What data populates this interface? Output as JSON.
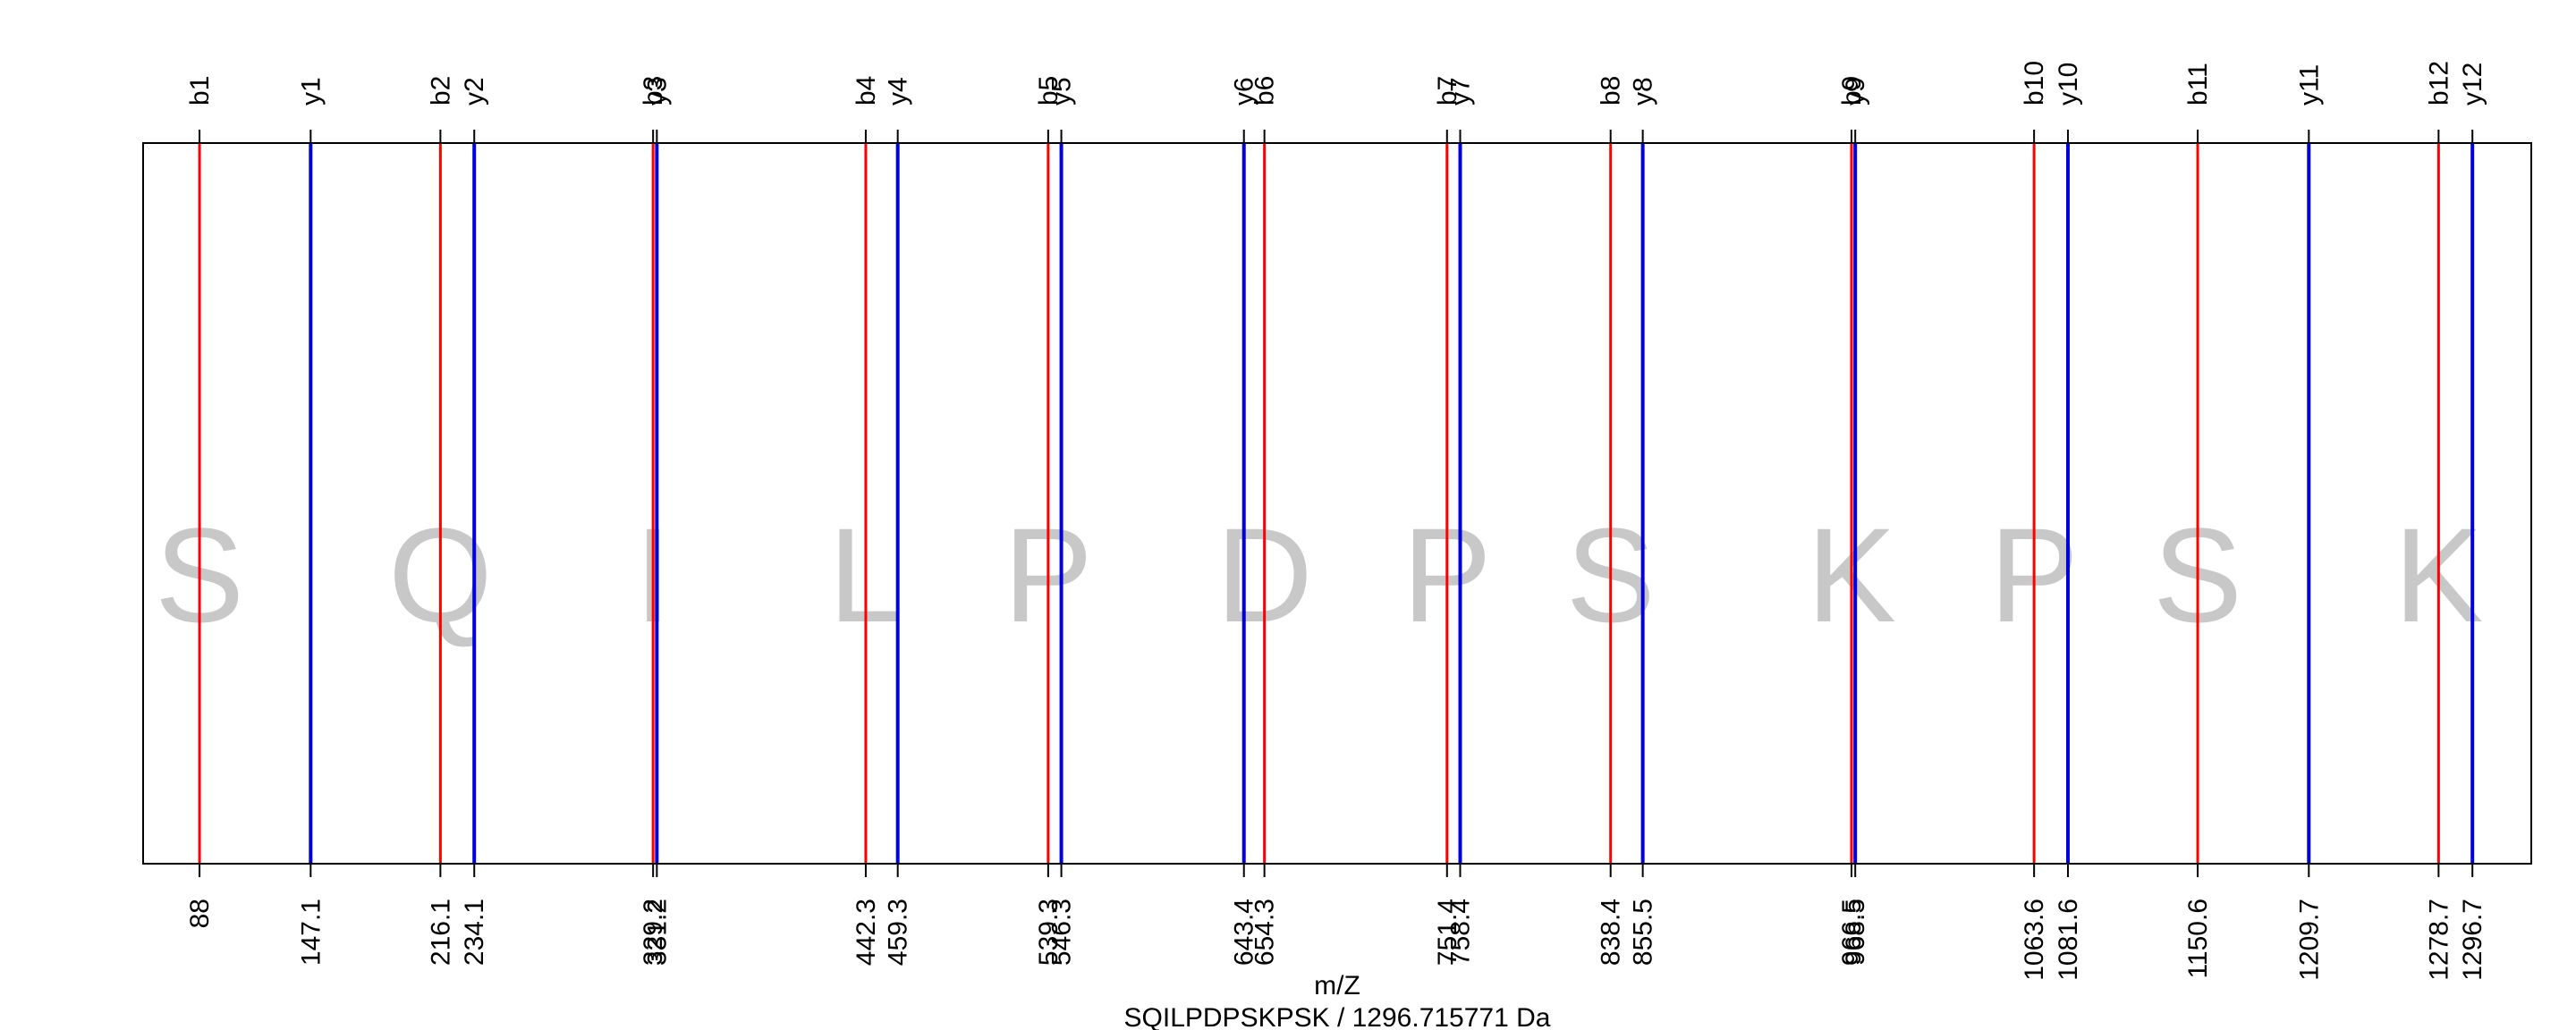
{
  "chart_data": {
    "type": "spectrum",
    "xlabel": "m/Z",
    "subtitle": "SQILPDPSKPSK / 1296.715771 Da",
    "xlim": [
      58,
      1328
    ],
    "sequence": [
      "S",
      "Q",
      "I",
      "L",
      "P",
      "D",
      "P",
      "S",
      "K",
      "P",
      "S",
      "K"
    ],
    "series": [
      {
        "name": "b",
        "color": "#ff0000",
        "ions": [
          {
            "label": "b1",
            "mz": 88.0,
            "mz_label": "88"
          },
          {
            "label": "b2",
            "mz": 216.1,
            "mz_label": "216.1"
          },
          {
            "label": "b3",
            "mz": 329.2,
            "mz_label": "329.2"
          },
          {
            "label": "b4",
            "mz": 442.3,
            "mz_label": "442.3"
          },
          {
            "label": "b5",
            "mz": 539.3,
            "mz_label": "539.3"
          },
          {
            "label": "b6",
            "mz": 654.3,
            "mz_label": "654.3"
          },
          {
            "label": "b7",
            "mz": 751.4,
            "mz_label": "751.4"
          },
          {
            "label": "b8",
            "mz": 838.4,
            "mz_label": "838.4"
          },
          {
            "label": "b9",
            "mz": 966.5,
            "mz_label": "966.5"
          },
          {
            "label": "b10",
            "mz": 1063.6,
            "mz_label": "1063.6"
          },
          {
            "label": "b11",
            "mz": 1150.6,
            "mz_label": "1150.6"
          },
          {
            "label": "b12",
            "mz": 1278.7,
            "mz_label": "1278.7"
          }
        ]
      },
      {
        "name": "y",
        "color": "#0000dd",
        "ions": [
          {
            "label": "y1",
            "mz": 147.1,
            "mz_label": "147.1"
          },
          {
            "label": "y2",
            "mz": 234.1,
            "mz_label": "234.1"
          },
          {
            "label": "y3",
            "mz": 331.2,
            "mz_label": "331.2"
          },
          {
            "label": "y4",
            "mz": 459.3,
            "mz_label": "459.3"
          },
          {
            "label": "y5",
            "mz": 546.3,
            "mz_label": "546.3"
          },
          {
            "label": "y6",
            "mz": 643.4,
            "mz_label": "643.4"
          },
          {
            "label": "y7",
            "mz": 758.4,
            "mz_label": "758.4"
          },
          {
            "label": "y8",
            "mz": 855.5,
            "mz_label": "855.5"
          },
          {
            "label": "y9",
            "mz": 968.5,
            "mz_label": "968.5"
          },
          {
            "label": "y10",
            "mz": 1081.6,
            "mz_label": "1081.6"
          },
          {
            "label": "y11",
            "mz": 1209.7,
            "mz_label": "1209.7"
          },
          {
            "label": "y12",
            "mz": 1296.7,
            "mz_label": "1296.7"
          }
        ]
      }
    ],
    "residue_color": "#c8c8c8",
    "frame_color": "#000000",
    "grid": false,
    "legend": "none"
  }
}
